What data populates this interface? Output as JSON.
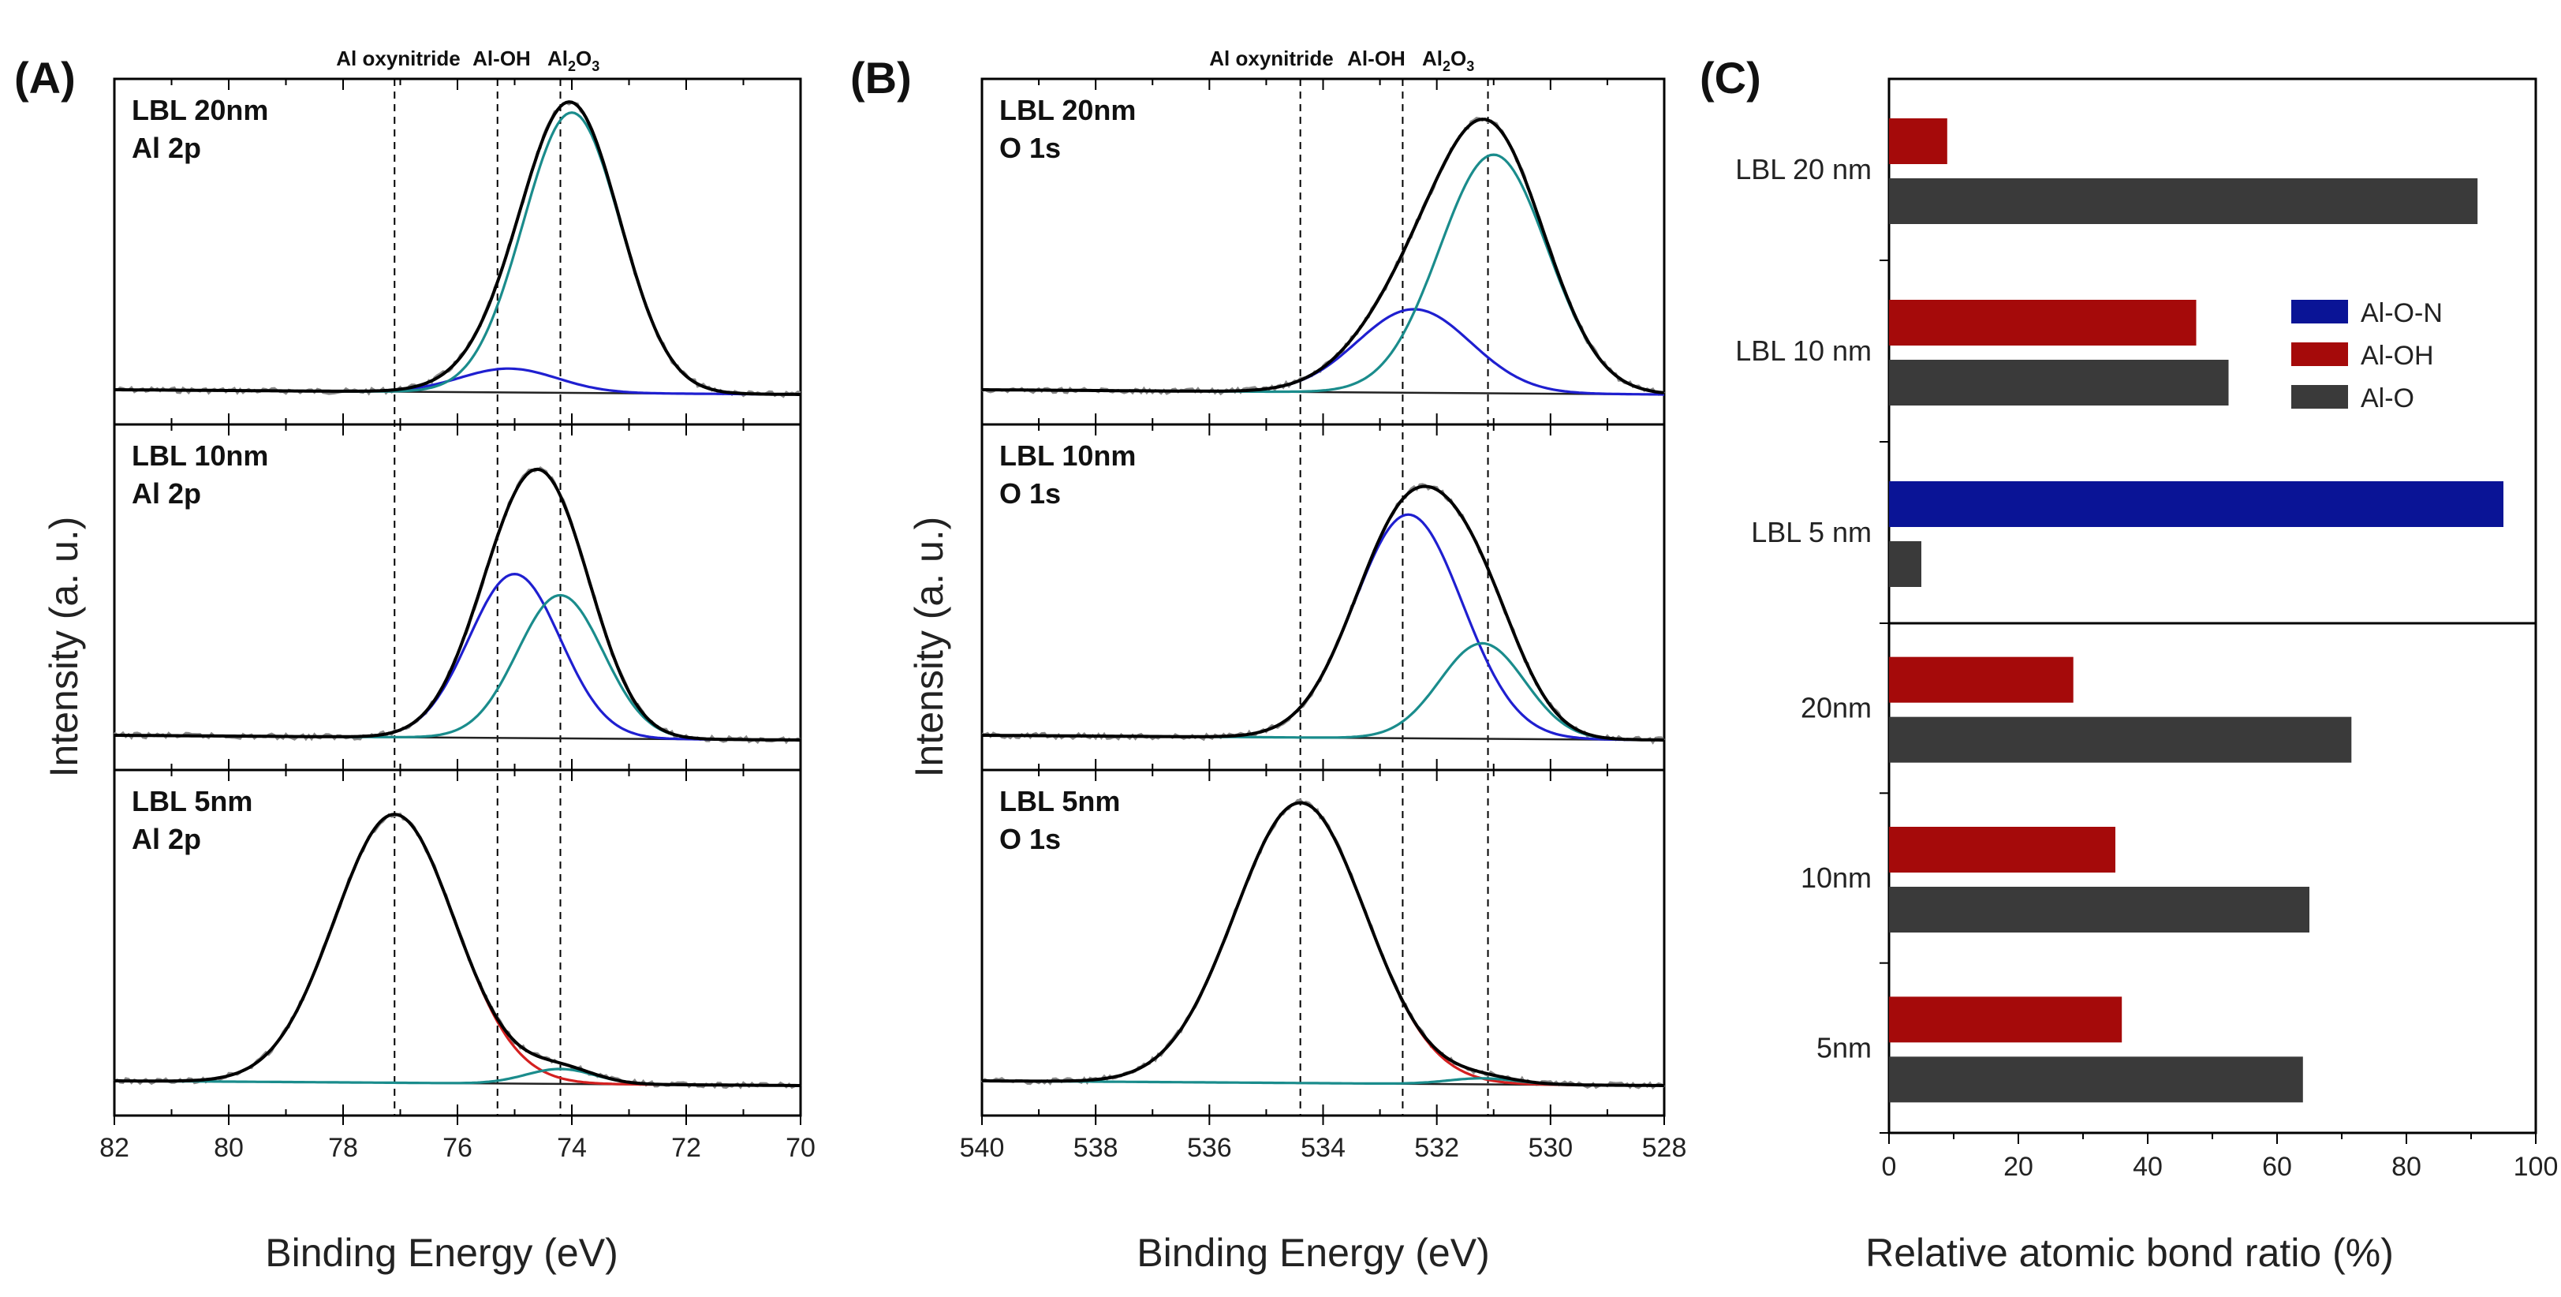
{
  "colors": {
    "envelope": "#000000",
    "raw": "#8a8a8a",
    "al_oh": "#1f1fd0",
    "al2o3": "#1a8c8c",
    "oxynitride": "#d42020",
    "background": "#222222",
    "bar_alon": "#0a1496",
    "bar_aloh": "#a50a0a",
    "bar_alo": "#3a3a3a"
  },
  "chart_data": [
    {
      "type": "line",
      "panel_label": "(A)",
      "xlabel": "Binding Energy (eV)",
      "ylabel": "Intensity (a. u.)",
      "xlim": [
        82,
        70
      ],
      "xticks": [
        "82",
        "80",
        "78",
        "76",
        "74",
        "72",
        "70"
      ],
      "peak_labels": [
        "Al oxynitride",
        "Al-OH",
        "Al",
        "2",
        "O",
        "3"
      ],
      "reference_lines_eV": [
        77.1,
        75.3,
        74.2
      ],
      "subpanels": [
        {
          "label_line1": "LBL 20nm",
          "label_line2": "Al 2p",
          "series": [
            {
              "name": "Al-OH",
              "center": 75.1,
              "height": 0.08,
              "width": 0.85
            },
            {
              "name": "Al2O3",
              "center": 74.0,
              "height": 0.94,
              "width": 0.85
            }
          ]
        },
        {
          "label_line1": "LBL 10nm",
          "label_line2": "Al 2p",
          "series": [
            {
              "name": "Al-OH",
              "center": 75.0,
              "height": 0.55,
              "width": 0.8
            },
            {
              "name": "Al2O3",
              "center": 74.2,
              "height": 0.48,
              "width": 0.75
            }
          ]
        },
        {
          "label_line1": "LBL 5nm",
          "label_line2": "Al 2p",
          "series": [
            {
              "name": "Al oxynitride",
              "center": 77.1,
              "height": 0.9,
              "width": 1.05
            },
            {
              "name": "Al2O3",
              "center": 74.2,
              "height": 0.05,
              "width": 0.6
            }
          ]
        }
      ]
    },
    {
      "type": "line",
      "panel_label": "(B)",
      "xlabel": "Binding Energy (eV)",
      "ylabel": "Intensity (a. u.)",
      "xlim": [
        540,
        528
      ],
      "xticks": [
        "540",
        "538",
        "536",
        "534",
        "532",
        "530",
        "528"
      ],
      "peak_labels": [
        "Al oxynitride",
        "Al-OH",
        "Al",
        "2",
        "O",
        "3"
      ],
      "reference_lines_eV": [
        534.4,
        532.6,
        531.1
      ],
      "subpanels": [
        {
          "label_line1": "LBL 20nm",
          "label_line2": "O 1s",
          "series": [
            {
              "name": "Al-OH",
              "center": 532.4,
              "height": 0.28,
              "width": 1.0
            },
            {
              "name": "Al2O3",
              "center": 531.0,
              "height": 0.8,
              "width": 0.95
            }
          ]
        },
        {
          "label_line1": "LBL 10nm",
          "label_line2": "O 1s",
          "series": [
            {
              "name": "Al-OH",
              "center": 532.5,
              "height": 0.75,
              "width": 0.95
            },
            {
              "name": "Al2O3",
              "center": 531.2,
              "height": 0.32,
              "width": 0.75
            }
          ]
        },
        {
          "label_line1": "LBL 5nm",
          "label_line2": "O 1s",
          "series": [
            {
              "name": "Al oxynitride",
              "center": 534.4,
              "height": 0.94,
              "width": 1.15
            },
            {
              "name": "Al2O3",
              "center": 531.2,
              "height": 0.02,
              "width": 0.6
            }
          ]
        }
      ]
    },
    {
      "type": "bar",
      "orientation": "horizontal",
      "panel_label": "(C)",
      "xlabel": "Relative atomic bond ratio (%)",
      "xlim": [
        0,
        100
      ],
      "xticks": [
        "0",
        "20",
        "40",
        "60",
        "80",
        "100"
      ],
      "legend_position": "upper-right of top section",
      "legend": [
        "Al-O-N",
        "Al-OH",
        "Al-O"
      ],
      "groups": [
        {
          "label": "LBL 20 nm",
          "section": "top",
          "bars": [
            {
              "series": "Al-OH",
              "value": 9
            },
            {
              "series": "Al-O",
              "value": 91
            }
          ]
        },
        {
          "label": "LBL 10 nm",
          "section": "top",
          "bars": [
            {
              "series": "Al-OH",
              "value": 47.5
            },
            {
              "series": "Al-O",
              "value": 52.5
            }
          ]
        },
        {
          "label": "LBL 5 nm",
          "section": "top",
          "bars": [
            {
              "series": "Al-O-N",
              "value": 95
            },
            {
              "series": "Al-O",
              "value": 5
            }
          ]
        },
        {
          "label": "20nm",
          "section": "bottom",
          "bars": [
            {
              "series": "Al-OH",
              "value": 28.5
            },
            {
              "series": "Al-O",
              "value": 71.5
            }
          ]
        },
        {
          "label": "10nm",
          "section": "bottom",
          "bars": [
            {
              "series": "Al-OH",
              "value": 35
            },
            {
              "series": "Al-O",
              "value": 65
            }
          ]
        },
        {
          "label": "5nm",
          "section": "bottom",
          "bars": [
            {
              "series": "Al-OH",
              "value": 36
            },
            {
              "series": "Al-O",
              "value": 64
            }
          ]
        }
      ]
    }
  ]
}
